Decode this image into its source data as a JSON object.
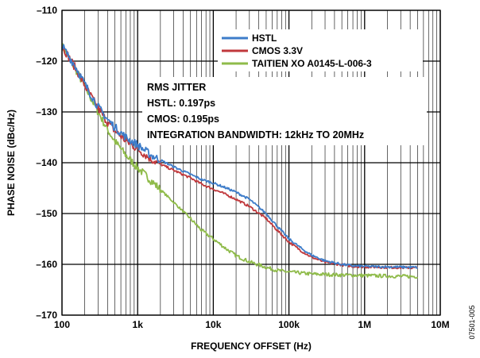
{
  "chart_data": {
    "type": "line",
    "title": "",
    "xlabel": "FREQUENCY OFFSET (Hz)",
    "ylabel": "PHASE NOISE (dBc/Hz)",
    "xscale": "log",
    "xlim": [
      100,
      10000000
    ],
    "ylim": [
      -170,
      -110
    ],
    "x_ticks": [
      {
        "value": 100,
        "label": "100"
      },
      {
        "value": 1000,
        "label": "1k"
      },
      {
        "value": 10000,
        "label": "10k"
      },
      {
        "value": 100000,
        "label": "100k"
      },
      {
        "value": 1000000,
        "label": "1M"
      },
      {
        "value": 10000000,
        "label": "10M"
      }
    ],
    "y_ticks": [
      {
        "value": -110,
        "label": "–110"
      },
      {
        "value": -120,
        "label": "–120"
      },
      {
        "value": -130,
        "label": "–130"
      },
      {
        "value": -140,
        "label": "–140"
      },
      {
        "value": -150,
        "label": "–150"
      },
      {
        "value": -160,
        "label": "–160"
      },
      {
        "value": -170,
        "label": "–170"
      }
    ],
    "grid": true,
    "legend_position": "top-right",
    "series": [
      {
        "name": "HSTL",
        "color": "#3d7cc9",
        "points": [
          [
            100,
            -117
          ],
          [
            150,
            -121
          ],
          [
            200,
            -124.5
          ],
          [
            300,
            -129
          ],
          [
            400,
            -131.5
          ],
          [
            500,
            -133
          ],
          [
            700,
            -135
          ],
          [
            1000,
            -136.5
          ],
          [
            1500,
            -138.5
          ],
          [
            2000,
            -139.5
          ],
          [
            3000,
            -140.8
          ],
          [
            5000,
            -142.3
          ],
          [
            7000,
            -143.3
          ],
          [
            10000,
            -144
          ],
          [
            15000,
            -145
          ],
          [
            20000,
            -145.8
          ],
          [
            30000,
            -147.2
          ],
          [
            50000,
            -150
          ],
          [
            70000,
            -152.5
          ],
          [
            100000,
            -155
          ],
          [
            150000,
            -157
          ],
          [
            200000,
            -158.2
          ],
          [
            300000,
            -159.3
          ],
          [
            500000,
            -160
          ],
          [
            700000,
            -160.3
          ],
          [
            1000000,
            -160.4
          ],
          [
            2000000,
            -160.5
          ],
          [
            5000000,
            -160.6
          ]
        ]
      },
      {
        "name": "CMOS 3.3V",
        "color": "#c0383c",
        "points": [
          [
            100,
            -117
          ],
          [
            150,
            -121.3
          ],
          [
            200,
            -124.8
          ],
          [
            300,
            -129.3
          ],
          [
            400,
            -132
          ],
          [
            500,
            -133.7
          ],
          [
            700,
            -135.7
          ],
          [
            1000,
            -137.3
          ],
          [
            1500,
            -139.3
          ],
          [
            2000,
            -140.3
          ],
          [
            3000,
            -141.5
          ],
          [
            5000,
            -143
          ],
          [
            7000,
            -144.2
          ],
          [
            10000,
            -145.2
          ],
          [
            15000,
            -146.3
          ],
          [
            20000,
            -147.2
          ],
          [
            30000,
            -148.6
          ],
          [
            50000,
            -151
          ],
          [
            70000,
            -153.3
          ],
          [
            100000,
            -155.6
          ],
          [
            150000,
            -157.5
          ],
          [
            200000,
            -158.6
          ],
          [
            300000,
            -159.6
          ],
          [
            500000,
            -160.1
          ],
          [
            700000,
            -160.4
          ],
          [
            1000000,
            -160.5
          ],
          [
            2000000,
            -160.6
          ],
          [
            5000000,
            -160.7
          ]
        ]
      },
      {
        "name": "TAITIEN XO A0145-L-006-3",
        "color": "#8fbb4a",
        "points": [
          [
            100,
            -117
          ],
          [
            150,
            -121.5
          ],
          [
            200,
            -125
          ],
          [
            300,
            -130
          ],
          [
            400,
            -133.5
          ],
          [
            500,
            -135.8
          ],
          [
            700,
            -138.5
          ],
          [
            1000,
            -141
          ],
          [
            1500,
            -143.5
          ],
          [
            2000,
            -145.3
          ],
          [
            3000,
            -147.8
          ],
          [
            5000,
            -151
          ],
          [
            7000,
            -153.3
          ],
          [
            10000,
            -155
          ],
          [
            15000,
            -157
          ],
          [
            20000,
            -158.3
          ],
          [
            30000,
            -159.5
          ],
          [
            50000,
            -160.6
          ],
          [
            70000,
            -161.2
          ],
          [
            100000,
            -161.5
          ],
          [
            200000,
            -161.9
          ],
          [
            500000,
            -162.1
          ],
          [
            1000000,
            -162.2
          ],
          [
            2000000,
            -162.3
          ],
          [
            5000000,
            -162.4
          ]
        ]
      }
    ],
    "annotation": [
      "RMS JITTER",
      "HSTL: 0.197ps",
      "CMOS: 0.195ps",
      "INTEGRATION BANDWIDTH: 12kHz TO 20MHz"
    ],
    "figure_id": "07501-005"
  }
}
